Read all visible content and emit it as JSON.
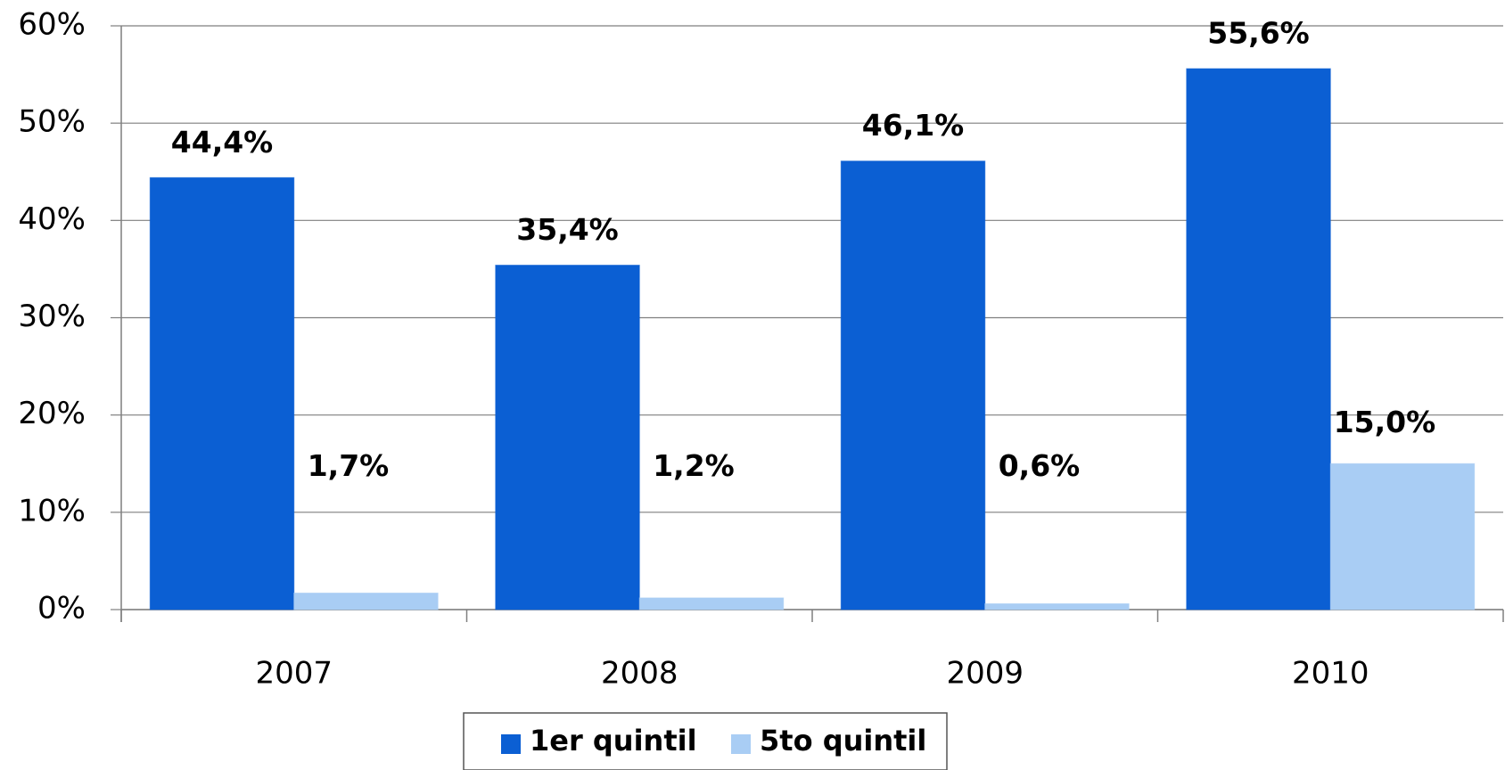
{
  "chart_data": {
    "type": "bar",
    "categories": [
      "2007",
      "2008",
      "2009",
      "2010"
    ],
    "series": [
      {
        "name": "1er quintil",
        "color": "#0b5fd3",
        "values": [
          44.4,
          35.4,
          46.1,
          55.6
        ],
        "value_labels": [
          "44,4%",
          "35,4%",
          "46,1%",
          "55,6%"
        ]
      },
      {
        "name": "5to quintil",
        "color": "#a9cdf4",
        "values": [
          1.7,
          1.2,
          0.6,
          15.0
        ],
        "value_labels": [
          "1,7%",
          "1,2%",
          "0,6%",
          "15,0%"
        ]
      }
    ],
    "ylim": [
      0,
      60
    ],
    "yticks": [
      {
        "value": 0,
        "label": "0%"
      },
      {
        "value": 10,
        "label": "10%"
      },
      {
        "value": 20,
        "label": "20%"
      },
      {
        "value": 30,
        "label": "30%"
      },
      {
        "value": 40,
        "label": "40%"
      },
      {
        "value": 50,
        "label": "50%"
      },
      {
        "value": 60,
        "label": "60%"
      }
    ],
    "grid": true,
    "legend": "bottom"
  }
}
